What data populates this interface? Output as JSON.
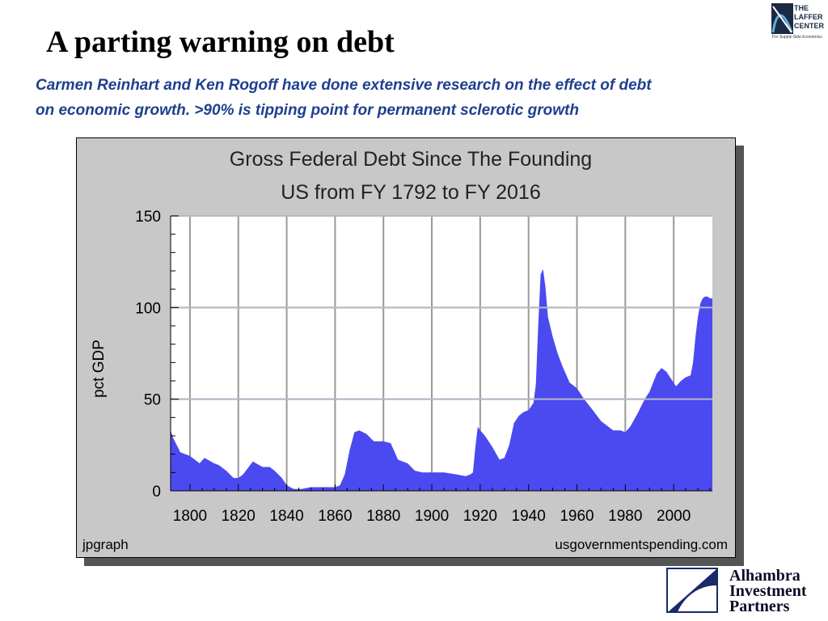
{
  "slide": {
    "title": "A parting warning on debt",
    "subtitle_line1": "Carmen Reinhart and Ken Rogoff have done extensive research on the effect of debt",
    "subtitle_line2": "on economic growth.  >90% is tipping point for permanent sclerotic growth"
  },
  "logos": {
    "laffer": {
      "line1": "THE",
      "line2": "LAFFER",
      "line3": "CENTER",
      "tagline": "For Supply-Side Economics"
    },
    "alhambra": {
      "line1": "Alhambra",
      "line2": "Investment",
      "line3": "Partners"
    }
  },
  "colors": {
    "fill": "#4a4af0",
    "panel": "#c8c8c8",
    "plot_bg": "#ffffff",
    "title_blue": "#1f3f8f"
  },
  "chart_data": {
    "type": "area",
    "title": "Gross Federal Debt Since The Founding",
    "subtitle": "US from FY 1792 to FY 2016",
    "xlabel": "",
    "ylabel": "pct GDP",
    "xlim": [
      1792,
      2016
    ],
    "ylim": [
      0,
      150
    ],
    "x_ticks": [
      1800,
      1820,
      1840,
      1860,
      1880,
      1900,
      1920,
      1940,
      1960,
      1980,
      2000
    ],
    "y_ticks": [
      0,
      50,
      100,
      150
    ],
    "grid": true,
    "footer_left": "jpgraph",
    "footer_right": "usgovernmentspending.com",
    "series": [
      {
        "name": "Gross Federal Debt pct GDP",
        "x": [
          1792,
          1793,
          1796,
          1800,
          1804,
          1806,
          1810,
          1812,
          1815,
          1818,
          1820,
          1822,
          1826,
          1830,
          1833,
          1835,
          1838,
          1840,
          1843,
          1846,
          1850,
          1855,
          1860,
          1862,
          1864,
          1866,
          1868,
          1870,
          1873,
          1876,
          1880,
          1883,
          1886,
          1888,
          1890,
          1893,
          1896,
          1900,
          1905,
          1910,
          1914,
          1916,
          1917,
          1918,
          1919,
          1920,
          1922,
          1925,
          1928,
          1930,
          1932,
          1934,
          1936,
          1938,
          1940,
          1941,
          1942,
          1943,
          1944,
          1945,
          1946,
          1947,
          1948,
          1950,
          1952,
          1954,
          1957,
          1960,
          1963,
          1966,
          1970,
          1973,
          1975,
          1978,
          1980,
          1982,
          1985,
          1988,
          1990,
          1993,
          1995,
          1997,
          2000,
          2001,
          2003,
          2005,
          2007,
          2008,
          2009,
          2010,
          2011,
          2012,
          2013,
          2014,
          2015,
          2016
        ],
        "values": [
          33,
          29,
          21,
          19,
          15,
          18,
          15,
          14,
          11,
          7,
          7,
          9,
          16,
          13,
          13,
          11,
          7,
          3,
          1,
          1,
          2,
          2,
          2,
          3,
          9,
          22,
          32,
          33,
          31,
          27,
          27,
          26,
          17,
          16,
          15,
          11,
          10,
          10,
          10,
          9,
          8,
          9,
          10,
          24,
          35,
          33,
          30,
          24,
          17,
          18,
          25,
          37,
          41,
          43,
          44,
          46,
          48,
          58,
          90,
          118,
          121,
          111,
          95,
          84,
          75,
          68,
          59,
          56,
          50,
          45,
          38,
          35,
          33,
          33,
          32,
          35,
          42,
          50,
          54,
          64,
          67,
          65,
          59,
          57,
          60,
          62,
          63,
          70,
          84,
          95,
          102,
          105,
          106,
          106,
          105,
          105
        ]
      }
    ]
  }
}
